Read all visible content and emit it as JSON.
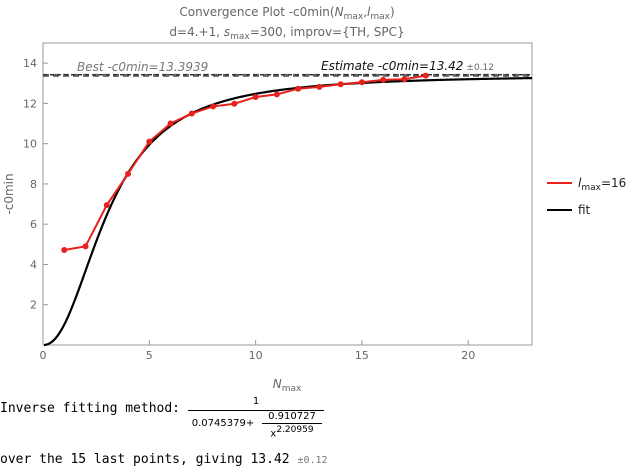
{
  "chart_data": {
    "type": "line",
    "title": "Convergence Plot -c0min(",
    "title_var1": "N",
    "title_sub1": "max",
    "title_sep": ",",
    "title_var2": "l",
    "title_sub2": "max",
    "title_end": ")",
    "subtitle_pre": "d=4.+1, ",
    "subtitle_var": "s",
    "subtitle_sub": "max",
    "subtitle_post": "=300, improv={TH, SPC}",
    "xlabel_var": "N",
    "xlabel_sub": "max",
    "ylabel": "-c0min",
    "xlim": [
      0,
      23
    ],
    "ylim": [
      0,
      15
    ],
    "xticks": [
      0,
      5,
      10,
      15,
      20
    ],
    "yticks": [
      2,
      4,
      6,
      8,
      10,
      12,
      14
    ],
    "grid": false,
    "legend_position": "right",
    "series": [
      {
        "name": "l",
        "name_sub": "max",
        "name_post": "=16",
        "color": "#e8201e",
        "x": [
          1,
          2,
          3,
          4,
          5,
          6,
          7,
          8,
          9,
          10,
          11,
          12,
          13,
          14,
          15,
          16,
          17,
          18
        ],
        "y": [
          4.72,
          4.9,
          6.95,
          8.5,
          10.1,
          11.0,
          11.5,
          11.85,
          11.98,
          12.32,
          12.45,
          12.73,
          12.82,
          12.95,
          13.05,
          13.17,
          13.2,
          13.38
        ]
      },
      {
        "name": "fit",
        "color": "#000000",
        "fit": {
          "a": 0.0745379,
          "b": 0.910727,
          "p": 2.20959
        }
      }
    ],
    "best_line": {
      "value": 13.3939,
      "label": "Best -c0min=13.3939",
      "color": "#555555"
    },
    "estimate_line": {
      "value": 13.42,
      "label": "Estimate -c0min=13.42",
      "err": "±0.12",
      "color": "#222222"
    }
  },
  "footer": {
    "line1_label": "Inverse fitting method:",
    "frac_num": "1",
    "frac_den_a": "0.0745379",
    "frac_den_plus": "+",
    "inner_num": "0.910727",
    "inner_den_x": "x",
    "inner_den_exp": "2.20959",
    "line2_text": "over the 15 last points, giving 13.42",
    "line2_err": "±0.12"
  }
}
